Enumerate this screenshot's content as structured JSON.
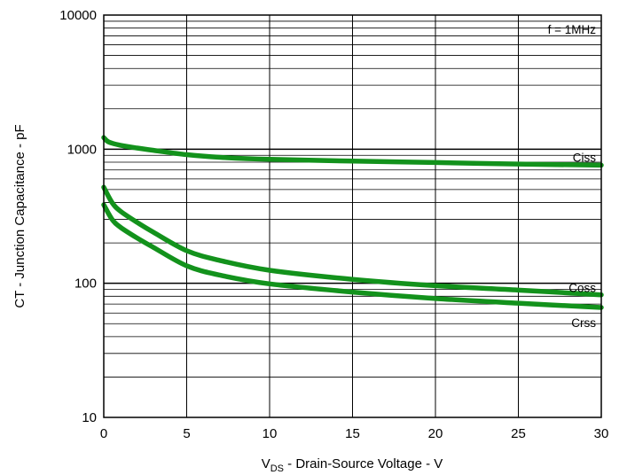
{
  "chart_data": {
    "type": "line",
    "x_scale": "linear",
    "y_scale": "log",
    "xlim": [
      0,
      30
    ],
    "ylim": [
      10,
      10000
    ],
    "xticks": [
      0,
      5,
      10,
      15,
      20,
      25,
      30
    ],
    "xtick_labels": [
      "0",
      "5",
      "10",
      "15",
      "20",
      "25",
      "30"
    ],
    "yticks": [
      10,
      100,
      1000,
      10000
    ],
    "ytick_labels": [
      "10",
      "100",
      "1000",
      "10000"
    ],
    "grid": true,
    "xlabel": {
      "main": "V",
      "sub": "DS",
      "rest": " - Drain-Source Voltage - V"
    },
    "ylabel": "CT - Junction Capacitance - pF",
    "annotation": "f = 1MHz",
    "line_color": "#13921c",
    "series": [
      {
        "name": "Ciss",
        "points": [
          [
            0,
            1220
          ],
          [
            0.3,
            1130
          ],
          [
            1,
            1070
          ],
          [
            2,
            1020
          ],
          [
            3,
            980
          ],
          [
            5,
            910
          ],
          [
            7,
            870
          ],
          [
            10,
            840
          ],
          [
            15,
            815
          ],
          [
            20,
            795
          ],
          [
            25,
            775
          ],
          [
            30,
            760
          ]
        ]
      },
      {
        "name": "Coss",
        "points": [
          [
            0,
            520
          ],
          [
            0.5,
            400
          ],
          [
            1,
            345
          ],
          [
            2,
            285
          ],
          [
            3,
            240
          ],
          [
            5,
            175
          ],
          [
            7,
            148
          ],
          [
            10,
            125
          ],
          [
            15,
            107
          ],
          [
            20,
            96
          ],
          [
            25,
            89
          ],
          [
            30,
            82
          ]
        ]
      },
      {
        "name": "Crss",
        "points": [
          [
            0,
            385
          ],
          [
            0.5,
            300
          ],
          [
            1,
            262
          ],
          [
            2,
            218
          ],
          [
            3,
            185
          ],
          [
            5,
            135
          ],
          [
            7,
            115
          ],
          [
            10,
            99
          ],
          [
            15,
            86
          ],
          [
            20,
            77
          ],
          [
            25,
            71
          ],
          [
            30,
            66
          ]
        ]
      }
    ]
  }
}
